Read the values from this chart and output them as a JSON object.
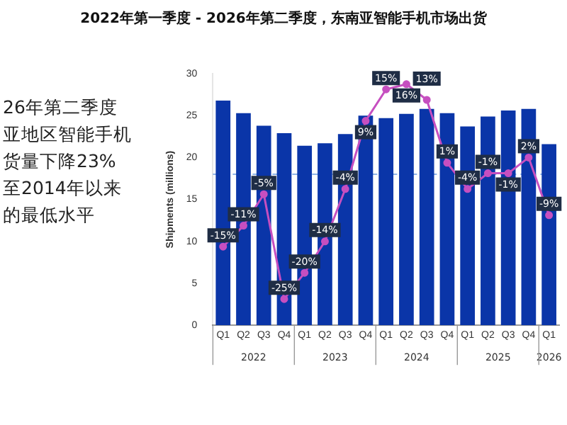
{
  "chart_data": {
    "type": "bar",
    "title": "2022年第一季度 - 2026年第二季度，东南亚智能手机市场出货",
    "ylabel": "Shipments (millions)",
    "categories": [
      "Q1",
      "Q2",
      "Q3",
      "Q4",
      "Q1",
      "Q2",
      "Q3",
      "Q4",
      "Q1",
      "Q2",
      "Q3",
      "Q4",
      "Q1",
      "Q2",
      "Q3",
      "Q4",
      "Q1"
    ],
    "annotations": [
      "2022",
      "2023",
      "2024",
      "2025",
      "2026",
      "26年第二季度",
      "亚地区智能手机",
      "货量下降23%",
      "至2014年以来",
      "的最低水平"
    ],
    "series": [
      {
        "color": "#0a35a8",
        "values": [
          26.8,
          25.3,
          23.8,
          22.9,
          21.4,
          21.7,
          22.8,
          25.0,
          24.7,
          25.2,
          25.8,
          25.3,
          23.7,
          24.9,
          25.6,
          25.8,
          21.6
        ]
      },
      {
        "type": "line",
        "axis": "y2",
        "color": "#c64fc0",
        "marker": "circle",
        "values": [
          -15,
          -11,
          -5,
          -25,
          -20,
          -14,
          -4,
          9,
          15,
          16,
          13,
          1,
          -4,
          -1,
          -1,
          2,
          -9
        ],
        "value_labels": [
          "-15%",
          "-11%",
          "-5%",
          "-25%",
          "-20%",
          "-14%",
          "-4%",
          "9%",
          "15%",
          "16%",
          "13%",
          "1%",
          "-4%",
          "-1%",
          "-1%",
          "2%",
          "-9%"
        ]
      }
    ],
    "ylim": [
      0,
      30
    ],
    "yticks": [
      0,
      5,
      10,
      15,
      20,
      25,
      30
    ],
    "y2lim": [
      -30,
      18
    ],
    "ref_lines": [
      {
        "axis": "y",
        "value": 18,
        "color": "#8fb4e8",
        "line_style": "dashed"
      }
    ],
    "grid": false,
    "legend": false
  }
}
